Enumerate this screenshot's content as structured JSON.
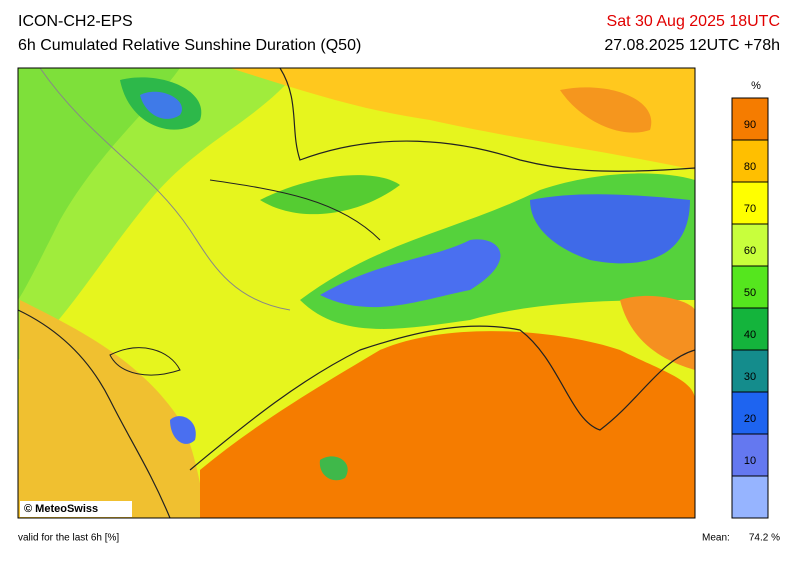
{
  "header": {
    "model": "ICON-CH2-EPS",
    "title": "6h Cumulated Relative Sunshine Duration (Q50)",
    "valid_time": "Sat 30 Aug 2025 18UTC",
    "run": "27.08.2025 12UTC +78h"
  },
  "map": {
    "credit": "© MeteoSwiss"
  },
  "colorbar": {
    "unit": "%",
    "ticks": [
      10,
      20,
      30,
      40,
      50,
      60,
      70,
      80,
      90
    ],
    "colors": [
      "#96b4ff",
      "#6478f0",
      "#1e64f0",
      "#148c8c",
      "#14b43c",
      "#55e61e",
      "#c8ff3c",
      "#ffff00",
      "#ffbf00",
      "#f57c00"
    ]
  },
  "footer": {
    "note": "valid for the last 6h [%]",
    "mean_label": "Mean:",
    "mean_value": "74.2 %"
  }
}
